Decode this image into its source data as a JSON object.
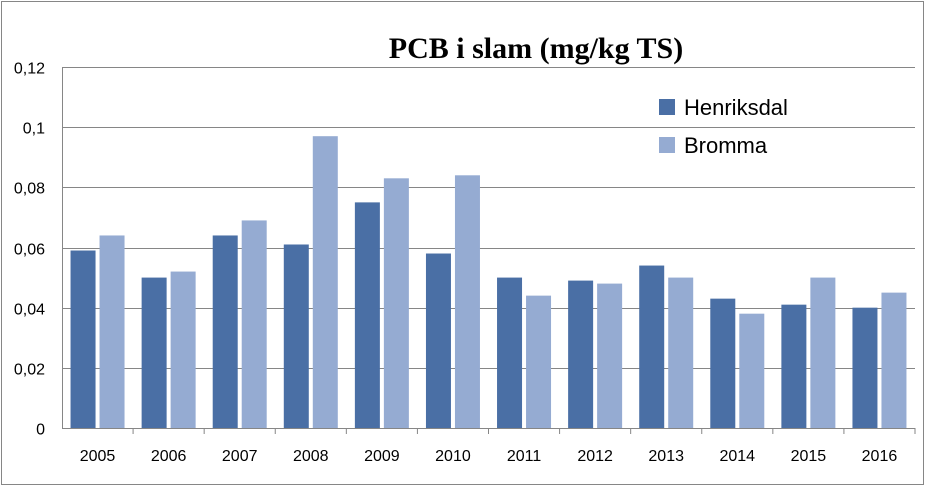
{
  "chart_data": {
    "type": "bar",
    "title": "PCB i slam (mg/kg TS)",
    "xlabel": "",
    "ylabel": "",
    "categories": [
      "2005",
      "2006",
      "2007",
      "2008",
      "2009",
      "2010",
      "2011",
      "2012",
      "2013",
      "2014",
      "2015",
      "2016"
    ],
    "series": [
      {
        "name": "Henriksdal",
        "color": "#4a6fa5",
        "values": [
          0.059,
          0.05,
          0.064,
          0.061,
          0.075,
          0.058,
          0.05,
          0.049,
          0.054,
          0.043,
          0.041,
          0.04
        ]
      },
      {
        "name": "Bromma",
        "color": "#95abd2",
        "values": [
          0.064,
          0.052,
          0.069,
          0.097,
          0.083,
          0.084,
          0.044,
          0.048,
          0.05,
          0.038,
          0.05,
          0.045
        ]
      }
    ],
    "ylim": [
      0,
      0.12
    ],
    "yticks": [
      0,
      0.02,
      0.04,
      0.06,
      0.08,
      0.1,
      0.12
    ],
    "ytick_labels": [
      "0",
      "0,02",
      "0,04",
      "0,06",
      "0,08",
      "0,1",
      "0,12"
    ],
    "grid": true,
    "legend_position": "top-right"
  }
}
